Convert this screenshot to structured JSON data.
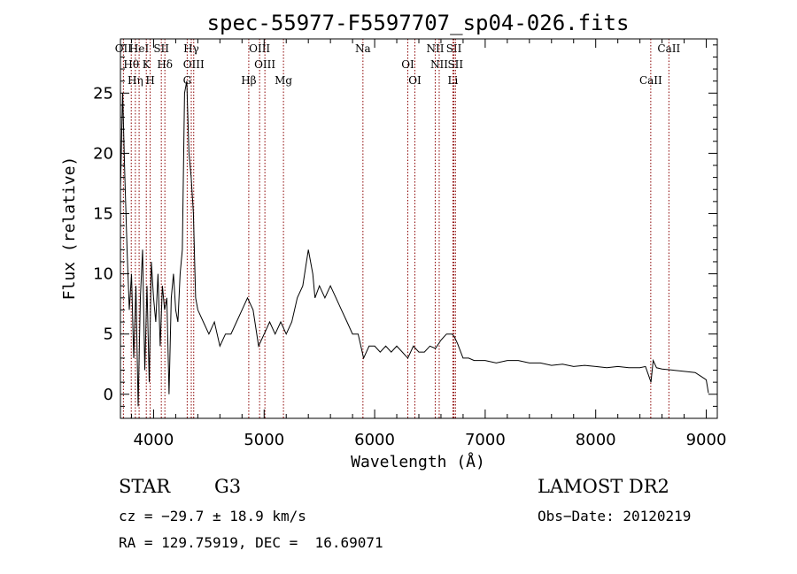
{
  "chart_data": {
    "type": "line",
    "title": "spec-55977-F5597707_sp04-026.fits",
    "xlabel": "Wavelength (Å)",
    "ylabel": "Flux (relative)",
    "xlim": [
      3700,
      9100
    ],
    "ylim": [
      -2,
      29.5
    ],
    "xticks": [
      4000,
      5000,
      6000,
      7000,
      8000,
      9000
    ],
    "yticks": [
      0,
      5,
      10,
      15,
      20,
      25
    ],
    "grid": false,
    "series": [
      {
        "values_x": [
          3700,
          3720,
          3740,
          3760,
          3780,
          3800,
          3820,
          3840,
          3860,
          3880,
          3900,
          3920,
          3940,
          3960,
          3980,
          4000,
          4020,
          4040,
          4060,
          4080,
          4100,
          4120,
          4140,
          4160,
          4180,
          4200,
          4220,
          4240,
          4260,
          4280,
          4300,
          4320,
          4340,
          4360,
          4380,
          4400,
          4450,
          4500,
          4550,
          4600,
          4650,
          4700,
          4750,
          4800,
          4850,
          4900,
          4950,
          5000,
          5050,
          5100,
          5150,
          5200,
          5250,
          5300,
          5350,
          5400,
          5420,
          5440,
          5460,
          5500,
          5550,
          5600,
          5650,
          5700,
          5750,
          5800,
          5850,
          5900,
          5950,
          6000,
          6050,
          6100,
          6150,
          6200,
          6250,
          6300,
          6350,
          6400,
          6450,
          6500,
          6550,
          6600,
          6650,
          6700,
          6720,
          6750,
          6800,
          6850,
          6900,
          7000,
          7100,
          7200,
          7300,
          7400,
          7500,
          7600,
          7700,
          7800,
          7900,
          8000,
          8100,
          8200,
          8300,
          8400,
          8450,
          8500,
          8520,
          8550,
          8600,
          8700,
          8800,
          8900,
          8950,
          9000,
          9020
        ],
        "values_y": [
          17,
          25,
          18,
          12,
          7,
          10,
          3,
          9,
          -1,
          8,
          12,
          2,
          9,
          1,
          11,
          8,
          6,
          10,
          4,
          9,
          7,
          8,
          0,
          8,
          10,
          7,
          6,
          10,
          12,
          25,
          26,
          20,
          18,
          15,
          8,
          7,
          6,
          5,
          6,
          4,
          5,
          5,
          6,
          7,
          8,
          7,
          4,
          5,
          6,
          5,
          6,
          5,
          6,
          8,
          9,
          12,
          11,
          10,
          8,
          9,
          8,
          9,
          8,
          7,
          6,
          5,
          5,
          3,
          4,
          4,
          3.5,
          4,
          3.5,
          4,
          3.5,
          3,
          4,
          3.5,
          3.5,
          4,
          3.8,
          4.5,
          5,
          5,
          4.8,
          4.2,
          3,
          3,
          2.8,
          2.8,
          2.6,
          2.8,
          2.8,
          2.6,
          2.6,
          2.4,
          2.5,
          2.3,
          2.4,
          2.3,
          2.2,
          2.3,
          2.2,
          2.2,
          2.3,
          1,
          2.8,
          2.2,
          2.1,
          2,
          1.9,
          1.8,
          1.5,
          1.2,
          0.1
        ]
      }
    ],
    "lines": [
      {
        "x": 3727,
        "labels": [
          "OII"
        ]
      },
      {
        "x": 3798,
        "labels": [
          "Hθ"
        ]
      },
      {
        "x": 3835,
        "labels": [
          "Hη"
        ]
      },
      {
        "x": 3869,
        "labels": [
          "HeI"
        ]
      },
      {
        "x": 3934,
        "labels": [
          "K"
        ]
      },
      {
        "x": 3969,
        "labels": [
          "H"
        ]
      },
      {
        "x": 4070,
        "labels": [
          "SII"
        ]
      },
      {
        "x": 4102,
        "labels": [
          "Hδ"
        ]
      },
      {
        "x": 4304,
        "labels": [
          "G"
        ]
      },
      {
        "x": 4341,
        "labels": [
          "Hγ"
        ]
      },
      {
        "x": 4363,
        "labels": [
          "OIII"
        ]
      },
      {
        "x": 4861,
        "labels": [
          "Hβ"
        ]
      },
      {
        "x": 4959,
        "labels": [
          "OIII"
        ]
      },
      {
        "x": 5007,
        "labels": [
          "OIII"
        ]
      },
      {
        "x": 5175,
        "labels": [
          "Mg"
        ]
      },
      {
        "x": 5894,
        "labels": [
          "Na"
        ]
      },
      {
        "x": 6300,
        "labels": [
          "OI"
        ]
      },
      {
        "x": 6364,
        "labels": [
          "OI"
        ]
      },
      {
        "x": 6548,
        "labels": [
          "NII"
        ]
      },
      {
        "x": 6584,
        "labels": [
          "NII"
        ]
      },
      {
        "x": 6708,
        "labels": [
          "Li"
        ]
      },
      {
        "x": 6717,
        "labels": [
          "SII"
        ]
      },
      {
        "x": 6731,
        "labels": [
          "SII"
        ]
      },
      {
        "x": 8498,
        "labels": [
          "CaII"
        ]
      },
      {
        "x": 8662,
        "labels": [
          "CaII"
        ]
      }
    ],
    "line_color": "#8b0000"
  },
  "info": {
    "object_class": "STAR",
    "subclass": "G3",
    "survey": "LAMOST DR2",
    "cz": "cz = −29.7 ± 18.9 km/s",
    "obs_date": "Obs−Date: 20120219",
    "coords": "RA = 129.75919, DEC =  16.69071"
  }
}
